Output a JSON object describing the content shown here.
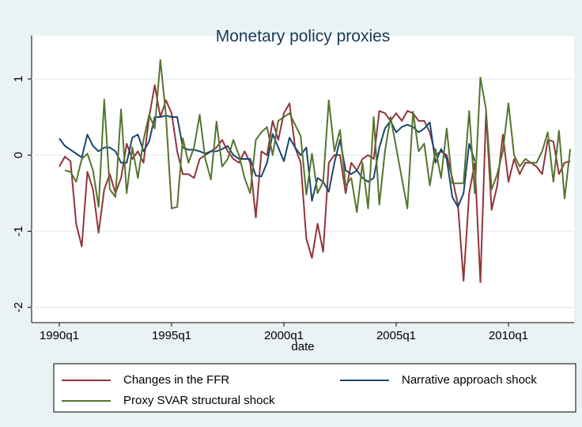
{
  "chart_data": {
    "type": "line",
    "title": "Monetary policy proxies",
    "x_label": "date",
    "categories": [
      "1990q1",
      null,
      null,
      null,
      null,
      null,
      null,
      null,
      null,
      null,
      null,
      null,
      null,
      null,
      null,
      null,
      null,
      null,
      null,
      null,
      "1995q1",
      null,
      null,
      null,
      null,
      null,
      null,
      null,
      null,
      null,
      null,
      null,
      null,
      null,
      null,
      null,
      null,
      null,
      null,
      null,
      "2000q1",
      null,
      null,
      null,
      null,
      null,
      null,
      null,
      null,
      null,
      null,
      null,
      null,
      null,
      null,
      null,
      null,
      null,
      null,
      null,
      "2005q1",
      null,
      null,
      null,
      null,
      null,
      null,
      null,
      null,
      null,
      null,
      null,
      null,
      null,
      null,
      null,
      null,
      null,
      null,
      null,
      "2010q1",
      null,
      null,
      null,
      null,
      null,
      null,
      null,
      null,
      null,
      null,
      null
    ],
    "ylim": [
      -2.2,
      1.57
    ],
    "yticks": [
      -2,
      -1,
      0,
      1
    ],
    "grid": true,
    "legend": "bottom",
    "series": [
      {
        "name": "Changes in the FFR",
        "color": "#90353b",
        "values": [
          -0.15,
          -0.02,
          -0.08,
          -0.9,
          -1.2,
          -0.22,
          -0.45,
          -1.02,
          -0.45,
          -0.25,
          -0.5,
          -0.3,
          0.15,
          -0.05,
          0.05,
          -0.1,
          0.5,
          0.92,
          0.5,
          0.72,
          0.55,
          0.05,
          -0.25,
          -0.25,
          -0.3,
          -0.05,
          0.0,
          0.05,
          0.1,
          0.2,
          0.05,
          -0.05,
          -0.1,
          0.05,
          -0.1,
          -0.82,
          0.05,
          0.0,
          0.45,
          0.2,
          0.55,
          0.68,
          0.1,
          -0.1,
          -1.1,
          -1.35,
          -0.9,
          -1.27,
          -0.1,
          0.0,
          0.0,
          -0.5,
          -0.1,
          -0.2,
          -0.05,
          0.0,
          -0.05,
          0.58,
          0.55,
          0.45,
          0.55,
          0.45,
          0.58,
          0.55,
          0.45,
          0.45,
          0.3,
          0.0,
          0.05,
          0.0,
          -0.3,
          -0.65,
          -1.65,
          -0.5,
          -0.1,
          -1.67,
          0.55,
          -0.72,
          -0.4,
          0.27,
          -0.35,
          -0.05,
          -0.25,
          -0.1,
          -0.1,
          -0.15,
          -0.25,
          0.2,
          0.18,
          -0.25,
          -0.1,
          -0.08
        ]
      },
      {
        "name": "Narrative approach shock",
        "color": "#1a476f",
        "values": [
          0.22,
          0.12,
          0.07,
          0.02,
          -0.03,
          0.27,
          0.12,
          0.05,
          0.1,
          0.1,
          0.05,
          -0.1,
          -0.1,
          0.23,
          0.27,
          0.05,
          0.18,
          0.5,
          0.5,
          0.52,
          0.5,
          0.5,
          0.1,
          0.07,
          0.07,
          0.05,
          0.02,
          0.05,
          0.05,
          0.08,
          0.12,
          0.0,
          -0.05,
          -0.05,
          -0.05,
          -0.27,
          -0.28,
          -0.1,
          0.28,
          0.1,
          -0.08,
          0.23,
          0.1,
          0.0,
          0.1,
          -0.6,
          -0.3,
          -0.35,
          -0.48,
          -0.1,
          0.2,
          -0.2,
          -0.25,
          -0.2,
          -0.3,
          -0.35,
          -0.3,
          0.1,
          0.35,
          0.45,
          0.3,
          0.37,
          0.4,
          0.37,
          0.3,
          0.35,
          0.43,
          -0.1,
          0.08,
          -0.05,
          -0.55,
          -0.68,
          -0.5,
          0.15,
          -0.08,
          null,
          null,
          null,
          null,
          null,
          null,
          null,
          null,
          null,
          null,
          null,
          null,
          null,
          null,
          null,
          null,
          null
        ]
      },
      {
        "name": "Proxy SVAR structural shock",
        "color": "#55752f",
        "values": [
          null,
          -0.2,
          -0.22,
          -0.35,
          -0.05,
          0.02,
          -0.2,
          -0.68,
          0.73,
          -0.45,
          -0.55,
          0.6,
          -0.5,
          0.1,
          -0.3,
          0.2,
          0.53,
          0.35,
          1.25,
          0.52,
          -0.7,
          -0.68,
          0.22,
          -0.1,
          0.1,
          0.53,
          -0.05,
          -0.32,
          0.44,
          -0.15,
          -0.05,
          0.2,
          0.0,
          -0.3,
          -0.5,
          0.2,
          0.3,
          0.37,
          0.0,
          0.45,
          0.5,
          0.55,
          0.4,
          0.25,
          -0.52,
          0.02,
          -0.5,
          -0.35,
          0.72,
          0.05,
          0.33,
          -0.4,
          -0.3,
          -0.75,
          -0.1,
          -0.7,
          0.5,
          -0.65,
          0.05,
          0.5,
          0.1,
          -0.3,
          -0.7,
          0.57,
          0.05,
          0.15,
          -0.4,
          0.08,
          -0.3,
          0.35,
          -0.37,
          -0.37,
          -0.37,
          0.58,
          -0.5,
          1.02,
          0.6,
          -0.45,
          -0.25,
          0.05,
          0.68,
          0.0,
          -0.15,
          -0.05,
          -0.1,
          -0.1,
          0.05,
          0.3,
          -0.35,
          0.32,
          -0.57,
          0.08
        ]
      }
    ]
  }
}
